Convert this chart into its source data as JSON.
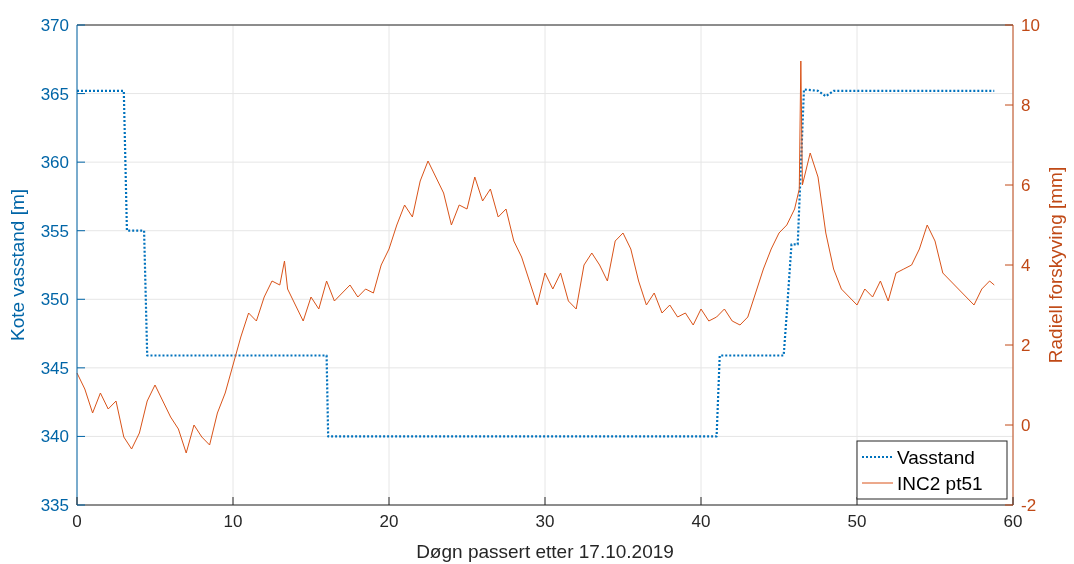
{
  "chart_data": {
    "type": "line",
    "xlabel": "Døgn passert etter 17.10.2019",
    "ylabel": "Kote vasstand [m]",
    "y2label": "Radiell forskyving [mm]",
    "xlim": [
      0,
      60
    ],
    "xticks": [
      0,
      10,
      20,
      30,
      40,
      50,
      60
    ],
    "ylim": [
      335,
      370
    ],
    "yticks": [
      335,
      340,
      345,
      350,
      355,
      360,
      365,
      370
    ],
    "y2lim": [
      -2,
      10
    ],
    "y2ticks": [
      -2,
      0,
      2,
      4,
      6,
      8,
      10
    ],
    "grid": true,
    "legend": "bottom right",
    "series": [
      {
        "name": "Vasstand",
        "color": "#0072bd",
        "line_style": "dotted",
        "x": [
          0,
          3,
          3.2,
          4.3,
          4.5,
          16,
          16.1,
          41,
          41.2,
          45.3,
          45.5,
          45.8,
          46.2,
          46.6,
          47.5,
          48,
          48.5,
          58.8
        ],
        "values": [
          365.2,
          365.2,
          355,
          355,
          345.9,
          345.9,
          340,
          340,
          345.9,
          345.9,
          349,
          354,
          354,
          365.3,
          365.2,
          364.8,
          365.2,
          365.2
        ]
      },
      {
        "name": "INC2 pt51",
        "color": "#d95319",
        "line_style": "solid",
        "axis": "y2",
        "x": [
          0,
          0.5,
          1,
          1.5,
          2,
          2.5,
          3,
          3.5,
          4,
          4.5,
          5,
          5.5,
          6,
          6.5,
          7,
          7.5,
          8,
          8.5,
          9,
          9.5,
          10,
          10.5,
          11,
          11.5,
          12,
          12.5,
          13,
          13.3,
          13.5,
          14,
          14.5,
          15,
          15.5,
          16,
          16.5,
          17,
          17.5,
          18,
          18.5,
          19,
          19.5,
          20,
          20.5,
          21,
          21.5,
          22,
          22.5,
          23,
          23.5,
          24,
          24.5,
          25,
          25.5,
          26,
          26.5,
          27,
          27.5,
          28,
          28.5,
          29,
          29.5,
          30,
          30.5,
          31,
          31.5,
          32,
          32.5,
          33,
          33.5,
          34,
          34.5,
          35,
          35.5,
          36,
          36.5,
          37,
          37.5,
          38,
          38.5,
          39,
          39.5,
          40,
          40.5,
          41,
          41.5,
          42,
          42.5,
          43,
          43.5,
          44,
          44.5,
          45,
          45.5,
          46,
          46.3,
          46.4,
          46.5,
          47,
          47.5,
          48,
          48.5,
          49,
          49.5,
          50,
          50.5,
          51,
          51.5,
          52,
          52.5,
          53,
          53.5,
          54,
          54.5,
          55,
          55.5,
          56,
          56.5,
          57,
          57.5,
          58,
          58.5,
          58.8
        ],
        "values": [
          1.3,
          0.9,
          0.3,
          0.8,
          0.4,
          0.6,
          -0.3,
          -0.6,
          -0.2,
          0.6,
          1.0,
          0.6,
          0.2,
          -0.1,
          -0.7,
          0.0,
          -0.3,
          -0.5,
          0.3,
          0.8,
          1.5,
          2.2,
          2.8,
          2.6,
          3.2,
          3.6,
          3.5,
          4.1,
          3.4,
          3.0,
          2.6,
          3.2,
          2.9,
          3.6,
          3.1,
          3.3,
          3.5,
          3.2,
          3.4,
          3.3,
          4.0,
          4.4,
          5.0,
          5.5,
          5.2,
          6.1,
          6.6,
          6.2,
          5.8,
          5.0,
          5.5,
          5.4,
          6.2,
          5.6,
          5.9,
          5.2,
          5.4,
          4.6,
          4.2,
          3.6,
          3.0,
          3.8,
          3.4,
          3.8,
          3.1,
          2.9,
          4.0,
          4.3,
          4.0,
          3.6,
          4.6,
          4.8,
          4.4,
          3.6,
          3.0,
          3.3,
          2.8,
          3.0,
          2.7,
          2.8,
          2.5,
          2.9,
          2.6,
          2.7,
          2.9,
          2.6,
          2.5,
          2.7,
          3.3,
          3.9,
          4.4,
          4.8,
          5.0,
          5.4,
          5.9,
          9.1,
          6.0,
          6.8,
          6.2,
          4.8,
          3.9,
          3.4,
          3.2,
          3.0,
          3.4,
          3.2,
          3.6,
          3.1,
          3.8,
          3.9,
          4.0,
          4.4,
          5.0,
          4.6,
          3.8,
          3.6,
          3.4,
          3.2,
          3.0,
          3.4,
          3.6,
          3.5
        ]
      }
    ]
  }
}
